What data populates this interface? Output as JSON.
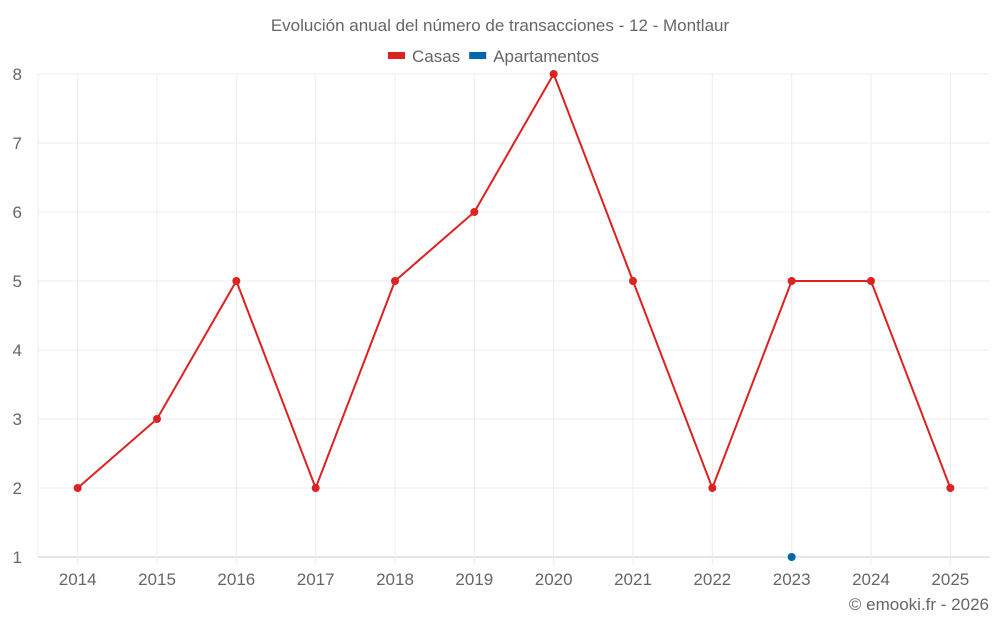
{
  "chart_data": {
    "type": "line",
    "title": "Evolución anual del número de transacciones - 12 - Montlaur",
    "categories": [
      "2014",
      "2015",
      "2016",
      "2017",
      "2018",
      "2019",
      "2020",
      "2021",
      "2022",
      "2023",
      "2024",
      "2025"
    ],
    "series": [
      {
        "name": "Casas",
        "color": "#dd2222",
        "values": [
          2,
          3,
          5,
          2,
          5,
          6,
          8,
          5,
          2,
          5,
          5,
          2
        ]
      },
      {
        "name": "Apartamentos",
        "color": "#0066aa",
        "values": [
          null,
          null,
          null,
          null,
          null,
          null,
          null,
          null,
          null,
          1,
          null,
          null
        ]
      }
    ],
    "ylim": [
      1,
      8
    ],
    "yticks": [
      1,
      2,
      3,
      4,
      5,
      6,
      7,
      8
    ],
    "grid": true,
    "legend": "top-center",
    "xlabel": "",
    "ylabel": ""
  },
  "footer": {
    "credit": "© emooki.fr - 2026"
  }
}
